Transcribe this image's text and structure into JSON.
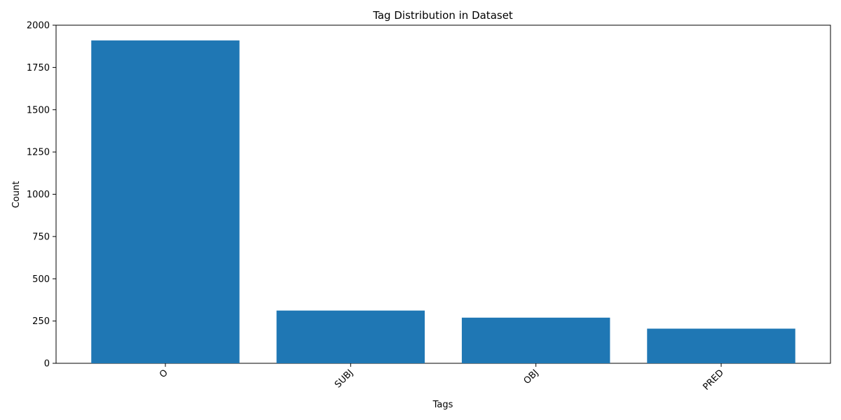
{
  "chart_data": {
    "type": "bar",
    "title": "Tag Distribution in Dataset",
    "xlabel": "Tags",
    "ylabel": "Count",
    "categories": [
      "O",
      "SUBJ",
      "OBJ",
      "PRED"
    ],
    "values": [
      1910,
      312,
      270,
      205
    ],
    "ylim": [
      0,
      2000
    ],
    "yticks": [
      0,
      250,
      500,
      750,
      1000,
      1250,
      1500,
      1750,
      2000
    ],
    "xtick_rotation_deg": 45,
    "bar_color": "#1f77b4",
    "grid": false,
    "legend": "none"
  }
}
